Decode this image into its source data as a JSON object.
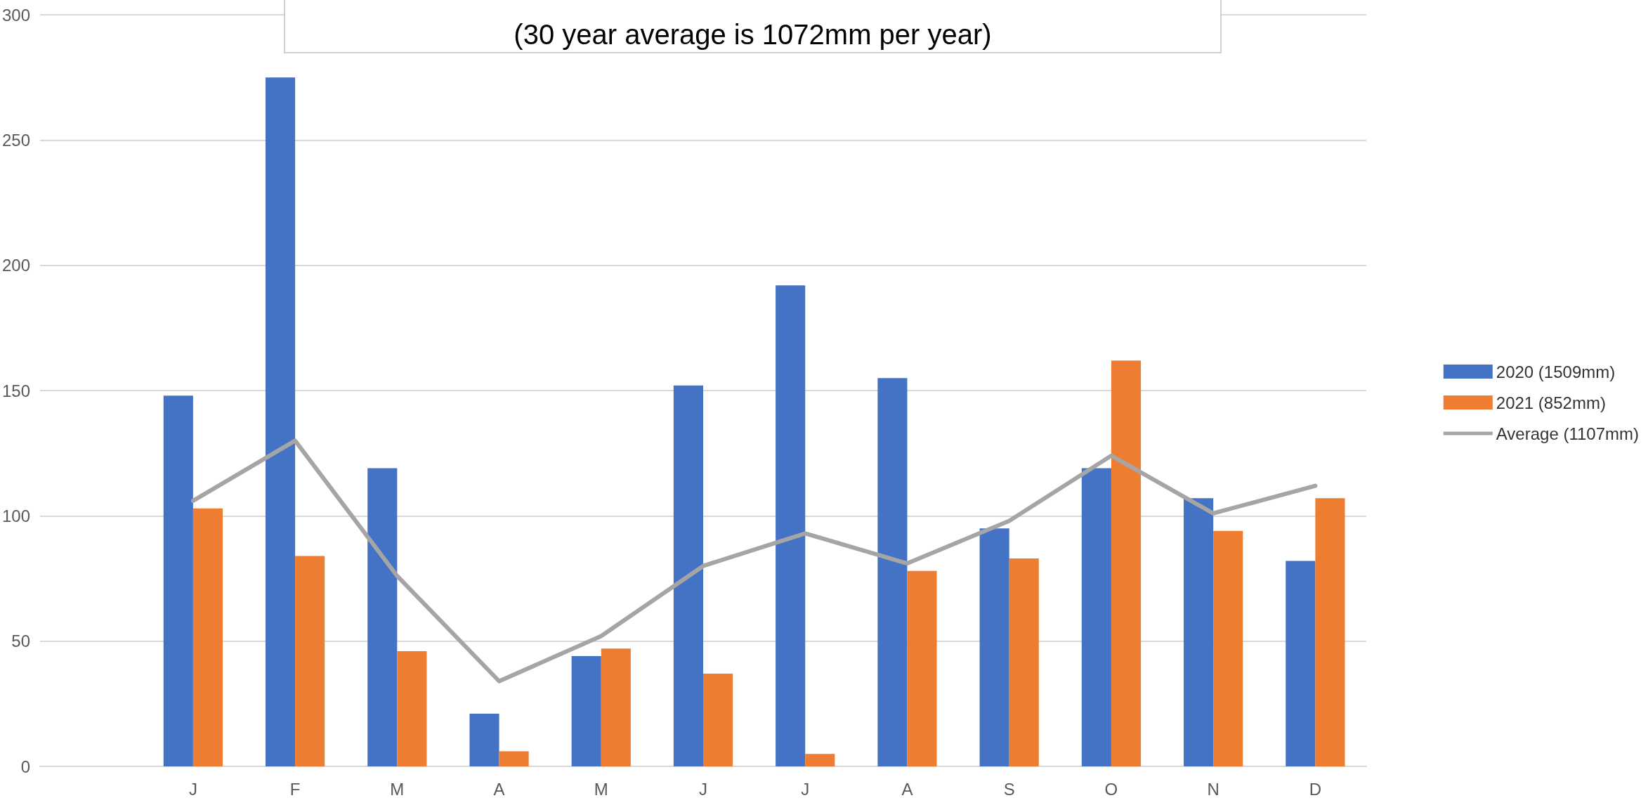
{
  "chart_data": {
    "type": "bar",
    "annotations": [
      "(30 year average is 1072mm per year)"
    ],
    "categories": [
      null,
      "J",
      "F",
      "M",
      "A",
      "M",
      "J",
      "J",
      "A",
      "S",
      "O",
      "N",
      "D"
    ],
    "series": [
      {
        "name": "2020 (1509mm)",
        "color": "#4472c4",
        "values": [
          null,
          148,
          275,
          119,
          21,
          44,
          152,
          192,
          155,
          95,
          119,
          107,
          82
        ]
      },
      {
        "name": "2021 (852mm)",
        "color": "#ed7d31",
        "values": [
          null,
          103,
          84,
          46,
          6,
          47,
          37,
          5,
          78,
          83,
          162,
          94,
          107
        ]
      },
      {
        "name": "Average (1107mm)",
        "type": "line",
        "color": "#a5a5a5",
        "values": [
          null,
          106,
          130,
          76,
          34,
          52,
          80,
          93,
          81,
          98,
          124,
          101,
          112
        ]
      }
    ],
    "ylim": [
      0,
      300
    ],
    "yticks": [
      0,
      50,
      100,
      150,
      200,
      250,
      300
    ],
    "grid": "y",
    "legend": "right",
    "marker": "none",
    "line_style": "solid"
  }
}
